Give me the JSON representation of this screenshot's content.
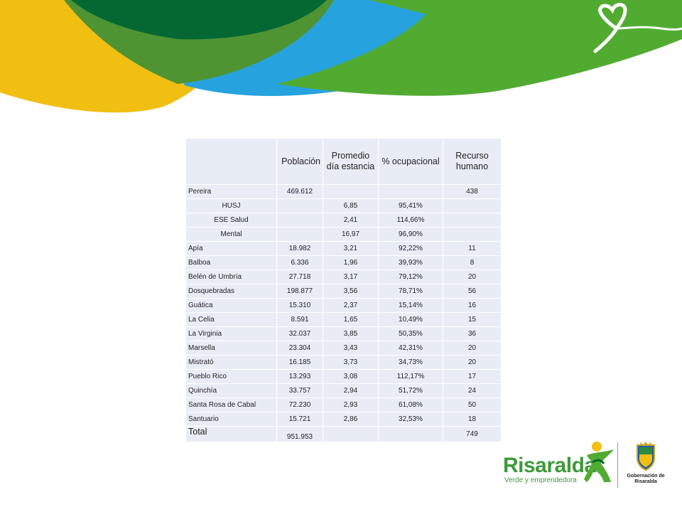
{
  "table": {
    "headers": {
      "blank": "",
      "poblacion": "Población",
      "promedio": "Promedio día estancia",
      "ocupacional": "% ocupacional",
      "recurso": "Recurso humano"
    },
    "rows": [
      {
        "name": "Pereira",
        "poblacion": "469.612",
        "promedio": "",
        "ocupacional": "",
        "recurso": "438"
      },
      {
        "name": "HUSJ",
        "poblacion": "",
        "promedio": "6,85",
        "ocupacional": "95,41%",
        "recurso": ""
      },
      {
        "name": "ESE Salud",
        "poblacion": "",
        "promedio": "2,41",
        "ocupacional": "114,66%",
        "recurso": ""
      },
      {
        "name": "Mental",
        "poblacion": "",
        "promedio": "16,97",
        "ocupacional": "96,90%",
        "recurso": ""
      },
      {
        "name": "Apía",
        "poblacion": "18.982",
        "promedio": "3,21",
        "ocupacional": "92,22%",
        "recurso": "11"
      },
      {
        "name": "Balboa",
        "poblacion": "6.336",
        "promedio": "1,96",
        "ocupacional": "39,93%",
        "recurso": "8"
      },
      {
        "name": "Belén de Umbría",
        "poblacion": "27.718",
        "promedio": "3,17",
        "ocupacional": "79,12%",
        "recurso": "20"
      },
      {
        "name": "Dosquebradas",
        "poblacion": "198.877",
        "promedio": "3,56",
        "ocupacional": "78,71%",
        "recurso": "56"
      },
      {
        "name": "Guática",
        "poblacion": "15.310",
        "promedio": "2,37",
        "ocupacional": "15,14%",
        "recurso": "16"
      },
      {
        "name": "La Celia",
        "poblacion": "8.591",
        "promedio": "1,65",
        "ocupacional": "10,49%",
        "recurso": "15"
      },
      {
        "name": "La Virginia",
        "poblacion": "32.037",
        "promedio": "3,85",
        "ocupacional": "50,35%",
        "recurso": "36"
      },
      {
        "name": "Marsella",
        "poblacion": "23.304",
        "promedio": "3,43",
        "ocupacional": "42,31%",
        "recurso": "20"
      },
      {
        "name": "Mistrató",
        "poblacion": "16.185",
        "promedio": "3,73",
        "ocupacional": "34,73%",
        "recurso": "20"
      },
      {
        "name": "Pueblo Rico",
        "poblacion": "13.293",
        "promedio": "3,08",
        "ocupacional": "112,17%",
        "recurso": "17"
      },
      {
        "name": "Quinchía",
        "poblacion": "33.757",
        "promedio": "2,94",
        "ocupacional": "51,72%",
        "recurso": "24"
      },
      {
        "name": "Santa Rosa de Cabal",
        "poblacion": "72.230",
        "promedio": "2,93",
        "ocupacional": "61,08%",
        "recurso": "50"
      },
      {
        "name": "Santuario",
        "poblacion": "15.721",
        "promedio": "2,86",
        "ocupacional": "32,53%",
        "recurso": "18"
      }
    ],
    "total": {
      "name": "Total",
      "poblacion": "951.953",
      "promedio": "",
      "ocupacional": "",
      "recurso": "749"
    }
  },
  "logos": {
    "brand_word": "Risaralda",
    "brand_slogan": "Verde y emprendedora",
    "gob_line1": "Gobernación de",
    "gob_line2": "Risaralda"
  },
  "colors": {
    "yellow": "#f0bf12",
    "dark_green": "#056833",
    "blue": "#26a3de",
    "light_green": "#52ab31",
    "brand_green": "#3d9a3a",
    "cell_bg": "#e8edf5"
  }
}
